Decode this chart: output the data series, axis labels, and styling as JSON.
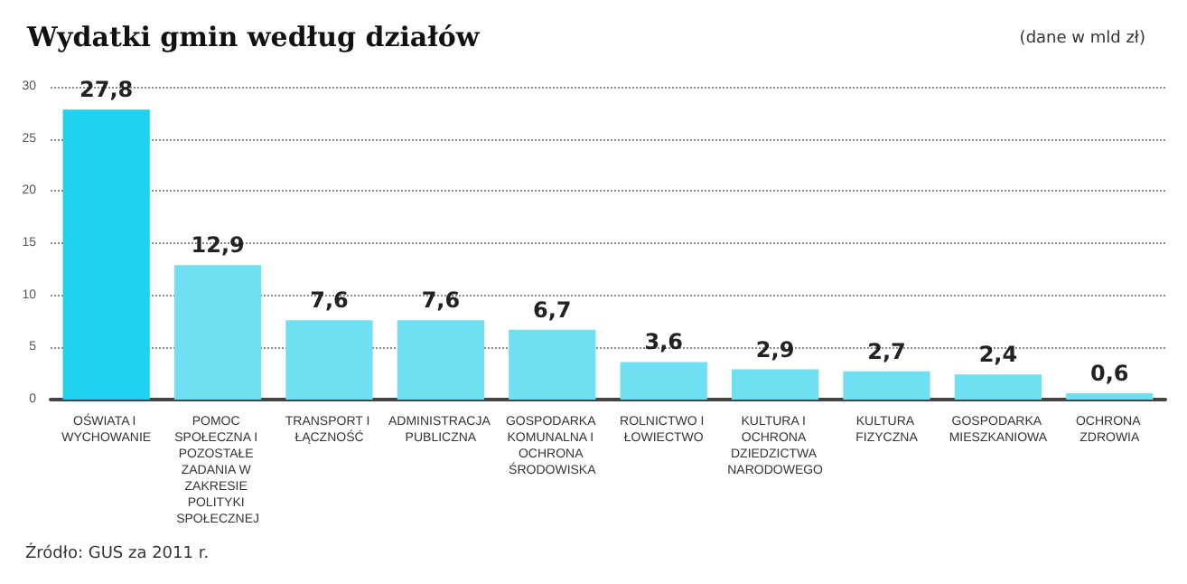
{
  "chart_data": {
    "type": "bar",
    "title": "Wydatki gmin według działów",
    "subtitle": "(dane w mld zł)",
    "annotations": [
      "Źródło: GUS za 2011 r."
    ],
    "categories": [
      "OŚWIATA I WYCHOWANIE",
      "POMOC SPOŁECZNA I POZOSTAŁE ZADANIA W ZAKRESIE POLITYKI SPOŁECZNEJ",
      "TRANSPORT I ŁĄCZNOŚĆ",
      "ADMINISTRACJA PUBLICZNA",
      "GOSPODARKA KOMUNALNA I OCHRONA ŚRODOWISKA",
      "ROLNICTWO I ŁOWIECTWO",
      "KULTURA I OCHRONA DZIEDZICTWA NARODOWEGO",
      "KULTURA FIZYCZNA",
      "GOSPODARKA MIESZKANIOWA",
      "OCHRONA ZDROWIA"
    ],
    "values": [
      27.8,
      12.9,
      7.6,
      7.6,
      6.7,
      3.6,
      2.9,
      2.7,
      2.4,
      0.6
    ],
    "colors": [
      "#1ed2ee",
      "#6fdff2",
      "#6fdff2",
      "#6fdff2",
      "#6fdff2",
      "#6fdff2",
      "#6fdff2",
      "#6fdff2",
      "#6fdff2",
      "#6fdff2"
    ],
    "value_labels": [
      "27,8",
      "12,9",
      "7,6",
      "7,6",
      "6,7",
      "3,6",
      "2,9",
      "2,7",
      "2,4",
      "0,6"
    ],
    "ylim": [
      0,
      30
    ],
    "yticks": [
      0,
      5,
      10,
      15,
      20,
      25,
      30
    ],
    "grid": "y"
  }
}
